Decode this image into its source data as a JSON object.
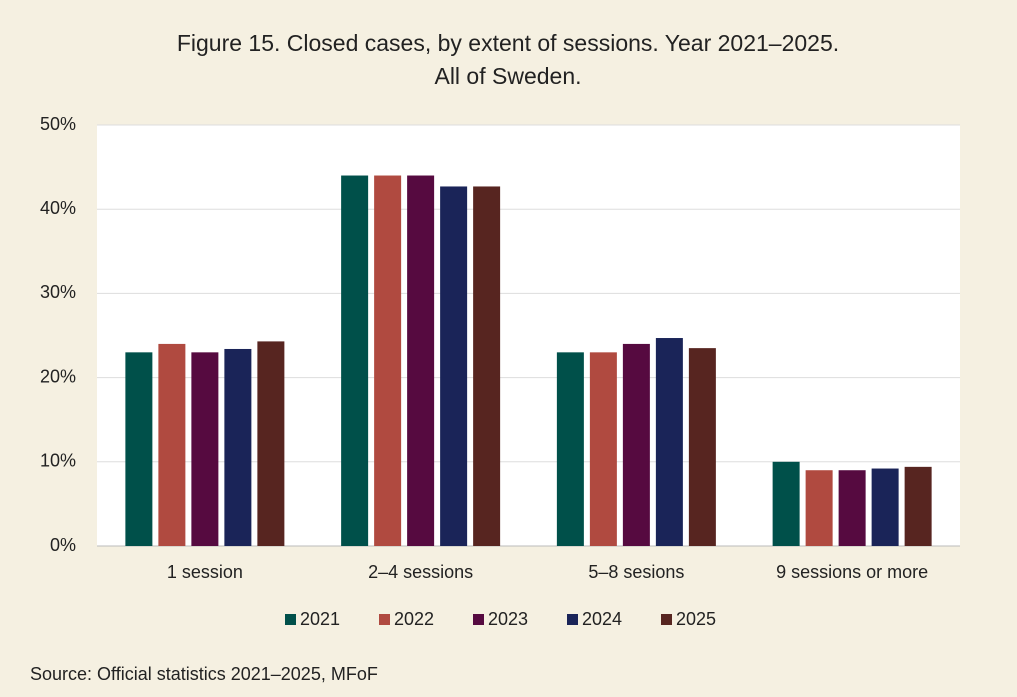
{
  "chart_data": {
    "type": "bar",
    "title": [
      "Figure 15. Closed cases, by extent of sessions. Year 2021–2025.",
      "All of Sweden."
    ],
    "categories": [
      "1 session",
      "2–4 sessions",
      "5–8 sesions",
      "9 sessions or more"
    ],
    "series": [
      {
        "name": "2021",
        "color": "#00504a",
        "values": [
          23,
          44,
          23,
          10
        ]
      },
      {
        "name": "2022",
        "color": "#b04a40",
        "values": [
          24,
          44,
          23,
          9
        ]
      },
      {
        "name": "2023",
        "color": "#560a40",
        "values": [
          23,
          44,
          24,
          9
        ]
      },
      {
        "name": "2024",
        "color": "#1a2458",
        "values": [
          23.4,
          42.7,
          24.7,
          9.2
        ]
      },
      {
        "name": "2025",
        "color": "#572520",
        "values": [
          24.3,
          42.7,
          23.5,
          9.4
        ]
      }
    ],
    "ylim": [
      0,
      50
    ],
    "yticks": [
      {
        "value": 0,
        "label": "0%"
      },
      {
        "value": 10,
        "label": "10%"
      },
      {
        "value": 20,
        "label": "20%"
      },
      {
        "value": 30,
        "label": "30%"
      },
      {
        "value": 40,
        "label": "40%"
      },
      {
        "value": 50,
        "label": "50%"
      }
    ],
    "grid": true,
    "legend": "bottom",
    "source": "Source: Official statistics 2021–2025, MFoF"
  }
}
